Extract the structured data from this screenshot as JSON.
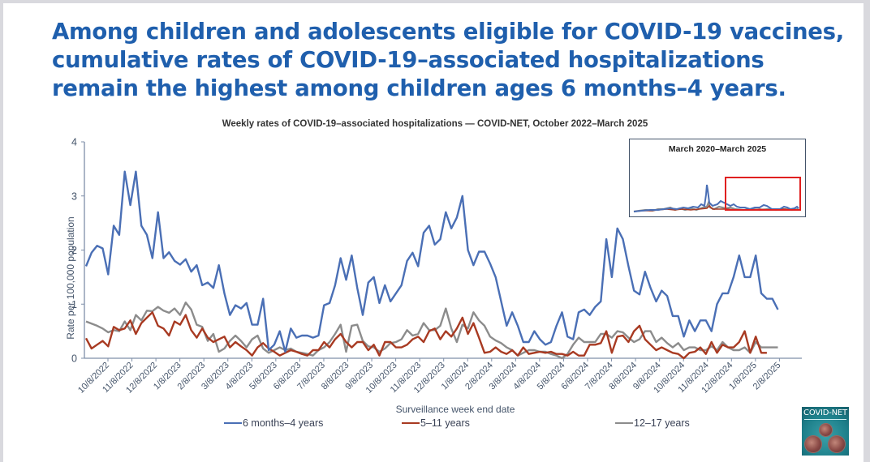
{
  "headline": {
    "line1": "Among children and adolescents eligible for COVID-19 vaccines,",
    "line2": "cumulative rates of COVID-19–associated hospitalizations",
    "line3": "remain the highest among children ages 6 months–4 years."
  },
  "inset": {
    "title": "March 2020–March 2025",
    "highlight_color": "#e02020"
  },
  "logo": {
    "text": "COVID-NET"
  },
  "colors": {
    "headline": "#1f5fad",
    "series_blue": "#4a6fb5",
    "series_red": "#a83a22",
    "series_gray": "#8c8c8c",
    "axis": "#7f8fa9"
  },
  "chart_data": {
    "type": "line",
    "title": "Weekly rates of COVID-19–associated hospitalizations — COVID-NET, October 2022–March 2025",
    "xlabel": "Surveillance week end date",
    "ylabel": "Rate per 100,000 population",
    "ylim": [
      0,
      4
    ],
    "yticks": [
      0,
      1,
      2,
      3,
      4
    ],
    "xtick_labels": [
      "10/8/2022",
      "11/8/2022",
      "12/8/2022",
      "1/8/2023",
      "2/8/2023",
      "3/8/2023",
      "4/8/2023",
      "5/8/2023",
      "6/8/2023",
      "7/8/2023",
      "8/8/2023",
      "9/8/2023",
      "10/8/2023",
      "11/8/2023",
      "12/8/2023",
      "1/8/2024",
      "2/8/2024",
      "3/8/2024",
      "4/8/2024",
      "5/8/2024",
      "6/8/2024",
      "7/8/2024",
      "8/8/2024",
      "9/8/2024",
      "10/8/2024",
      "11/8/2024",
      "12/8/2024",
      "1/8/2025",
      "2/8/2025"
    ],
    "x_start": "10/8/2022",
    "x_interval": "weekly",
    "legend_position": "bottom",
    "grid": false,
    "series": [
      {
        "name": "6 months–4 years",
        "color": "#4a6fb5",
        "values": [
          1.7,
          1.95,
          2.08,
          2.03,
          1.55,
          2.45,
          2.28,
          3.45,
          2.83,
          3.45,
          2.45,
          2.28,
          1.85,
          2.7,
          1.85,
          1.96,
          1.8,
          1.73,
          1.83,
          1.6,
          1.72,
          1.35,
          1.4,
          1.3,
          1.72,
          1.2,
          0.8,
          0.98,
          0.92,
          1.02,
          0.62,
          0.62,
          1.1,
          0.15,
          0.25,
          0.5,
          0.12,
          0.55,
          0.38,
          0.42,
          0.42,
          0.38,
          0.42,
          0.98,
          1.02,
          1.35,
          1.85,
          1.45,
          1.9,
          1.3,
          0.8,
          1.4,
          1.5,
          1.02,
          1.35,
          1.05,
          1.2,
          1.35,
          1.8,
          1.95,
          1.7,
          2.32,
          2.45,
          2.1,
          2.2,
          2.7,
          2.4,
          2.6,
          3.0,
          2.0,
          1.72,
          1.97,
          1.97,
          1.75,
          1.5,
          1.05,
          0.6,
          0.85,
          0.6,
          0.3,
          0.3,
          0.5,
          0.35,
          0.25,
          0.3,
          0.6,
          0.85,
          0.4,
          0.35,
          0.85,
          0.9,
          0.8,
          0.95,
          1.05,
          2.2,
          1.5,
          2.4,
          2.2,
          1.7,
          1.25,
          1.18,
          1.6,
          1.3,
          1.05,
          1.25,
          1.15,
          0.78,
          0.78,
          0.4,
          0.7,
          0.5,
          0.7,
          0.7,
          0.5,
          1.0,
          1.2,
          1.2,
          1.5,
          1.9,
          1.5,
          1.5,
          1.9,
          1.2,
          1.1,
          1.1,
          0.9
        ]
      },
      {
        "name": "5–11 years",
        "color": "#a83a22",
        "values": [
          0.37,
          0.18,
          0.25,
          0.32,
          0.22,
          0.58,
          0.52,
          0.55,
          0.7,
          0.45,
          0.65,
          0.75,
          0.85,
          0.6,
          0.55,
          0.42,
          0.68,
          0.62,
          0.8,
          0.52,
          0.38,
          0.55,
          0.38,
          0.3,
          0.35,
          0.4,
          0.2,
          0.3,
          0.22,
          0.15,
          0.05,
          0.2,
          0.28,
          0.18,
          0.12,
          0.05,
          0.1,
          0.15,
          0.12,
          0.08,
          0.05,
          0.15,
          0.15,
          0.3,
          0.2,
          0.35,
          0.45,
          0.3,
          0.2,
          0.3,
          0.3,
          0.15,
          0.25,
          0.05,
          0.3,
          0.3,
          0.2,
          0.2,
          0.25,
          0.35,
          0.4,
          0.3,
          0.5,
          0.55,
          0.35,
          0.5,
          0.4,
          0.55,
          0.75,
          0.45,
          0.65,
          0.38,
          0.1,
          0.12,
          0.2,
          0.12,
          0.08,
          0.15,
          0.05,
          0.2,
          0.08,
          0.1,
          0.12,
          0.1,
          0.12,
          0.08,
          0.08,
          0.05,
          0.12,
          0.05,
          0.05,
          0.25,
          0.25,
          0.28,
          0.5,
          0.1,
          0.4,
          0.42,
          0.3,
          0.5,
          0.6,
          0.35,
          0.25,
          0.15,
          0.2,
          0.15,
          0.1,
          0.08,
          0.0,
          0.1,
          0.12,
          0.2,
          0.08,
          0.3,
          0.1,
          0.25,
          0.2,
          0.2,
          0.3,
          0.5,
          0.1,
          0.4,
          0.1,
          0.1
        ]
      },
      {
        "name": "12–17 years",
        "color": "#8c8c8c",
        "values": [
          0.68,
          0.64,
          0.6,
          0.55,
          0.48,
          0.52,
          0.5,
          0.68,
          0.52,
          0.8,
          0.7,
          0.88,
          0.87,
          0.95,
          0.88,
          0.84,
          0.92,
          0.8,
          1.03,
          0.9,
          0.62,
          0.58,
          0.32,
          0.45,
          0.12,
          0.18,
          0.32,
          0.42,
          0.32,
          0.2,
          0.35,
          0.42,
          0.18,
          0.1,
          0.15,
          0.2,
          0.15,
          0.18,
          0.12,
          0.1,
          0.08,
          0.05,
          0.15,
          0.2,
          0.3,
          0.45,
          0.62,
          0.12,
          0.6,
          0.62,
          0.32,
          0.22,
          0.2,
          0.12,
          0.18,
          0.28,
          0.3,
          0.35,
          0.52,
          0.42,
          0.45,
          0.65,
          0.52,
          0.52,
          0.6,
          0.92,
          0.55,
          0.3,
          0.62,
          0.55,
          0.85,
          0.7,
          0.6,
          0.4,
          0.33,
          0.28,
          0.2,
          0.15,
          0.05,
          0.1,
          0.15,
          0.15,
          0.12,
          0.12,
          0.08,
          0.05,
          0.0,
          0.08,
          0.25,
          0.38,
          0.3,
          0.3,
          0.3,
          0.45,
          0.45,
          0.38,
          0.5,
          0.48,
          0.38,
          0.3,
          0.35,
          0.5,
          0.5,
          0.3,
          0.38,
          0.28,
          0.2,
          0.28,
          0.15,
          0.2,
          0.2,
          0.15,
          0.15,
          0.22,
          0.15,
          0.3,
          0.2,
          0.15,
          0.15,
          0.2,
          0.1,
          0.3,
          0.2,
          0.2,
          0.2,
          0.2
        ]
      }
    ],
    "legend": [
      "6 months–4 years",
      "5–11 years",
      "12–17 years"
    ],
    "inset": {
      "title": "March 2020–March 2025",
      "note": "Full-period overview; red box highlights October 2022–March 2025"
    }
  }
}
